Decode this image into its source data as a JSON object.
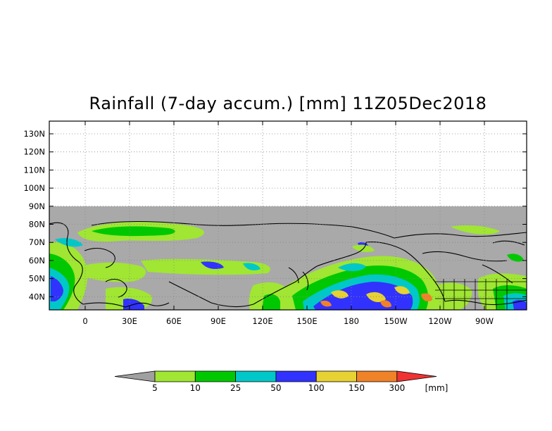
{
  "title": "Rainfall (7-day accum.) [mm] 11Z05Dec2018",
  "lat_labels": [
    "130N",
    "120N",
    "110N",
    "100N",
    "90N",
    "80N",
    "70N",
    "60N",
    "50N",
    "40N"
  ],
  "lon_labels": [
    "0",
    "30E",
    "60E",
    "90E",
    "120E",
    "150E",
    "180",
    "150W",
    "120W",
    "90W"
  ],
  "legend": {
    "levels": [
      "5",
      "10",
      "25",
      "50",
      "100",
      "150",
      "300"
    ],
    "unit": "[mm]",
    "colors": [
      "#a0a0a0",
      "#a0e632",
      "#00c800",
      "#00c8c8",
      "#3232ff",
      "#e6d232",
      "#f08228",
      "#f03232"
    ]
  },
  "colors": {
    "no_data": "#a9a9a9",
    "coast": "#000000",
    "grid": "#888888"
  }
}
